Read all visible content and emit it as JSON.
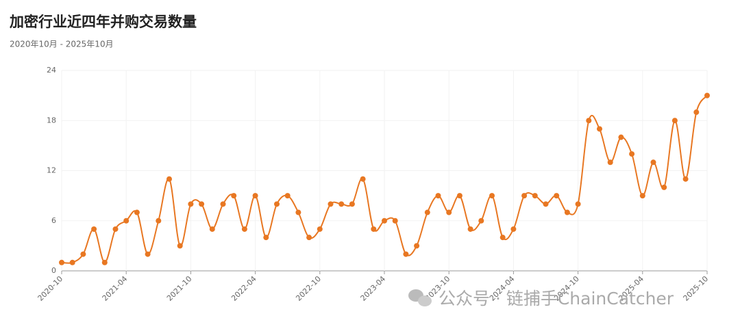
{
  "chart_data": {
    "type": "line",
    "title": "加密行业近四年并购交易数量",
    "subtitle": "2020年10月 - 2025年10月",
    "categories": [
      "2020-10",
      null,
      null,
      null,
      null,
      null,
      "2021-04",
      null,
      null,
      null,
      null,
      null,
      "2021-10",
      null,
      null,
      null,
      null,
      null,
      "2022-04",
      null,
      null,
      null,
      null,
      null,
      "2022-10",
      null,
      null,
      null,
      null,
      null,
      "2023-04",
      null,
      null,
      null,
      null,
      null,
      "2023-10",
      null,
      null,
      null,
      null,
      null,
      "2024-04",
      null,
      null,
      null,
      null,
      null,
      "2024-10",
      null,
      null,
      null,
      null,
      null,
      "2025-04",
      null,
      null,
      null,
      null,
      null,
      "2025-10"
    ],
    "series": [
      {
        "color": "#e87722",
        "values": [
          1,
          1,
          2,
          5,
          1,
          5,
          6,
          7,
          2,
          6,
          11,
          3,
          8,
          8,
          5,
          8,
          9,
          5,
          9,
          4,
          8,
          9,
          7,
          4,
          5,
          8,
          8,
          8,
          11,
          5,
          6,
          6,
          2,
          3,
          7,
          9,
          7,
          9,
          5,
          6,
          9,
          4,
          5,
          9,
          9,
          8,
          9,
          7,
          8,
          18,
          17,
          13,
          16,
          14,
          9,
          13,
          10,
          18,
          11,
          19,
          21
        ]
      }
    ],
    "ylim": [
      0,
      24
    ],
    "yticks": [
      0,
      6,
      12,
      18,
      24
    ],
    "grid": true,
    "watermark": "公众号 · 链捕手ChainCatcher"
  }
}
